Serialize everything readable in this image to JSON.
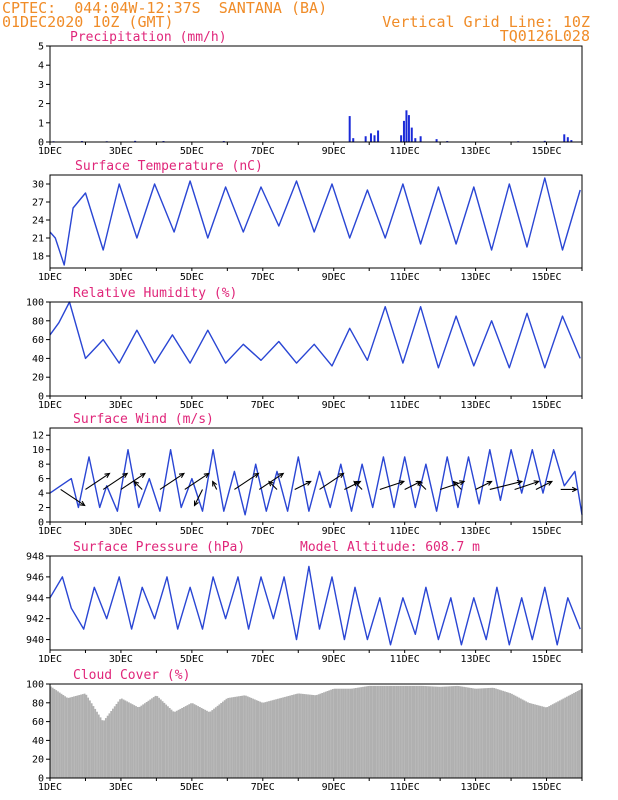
{
  "header": {
    "line1": "CPTEC:  044:04W-12:37S  SANTANA (BA)",
    "line2": "01DEC2020 10Z (GMT)",
    "grid_note": "Vertical Grid Line: 10Z",
    "run_code": "TQ0126L028"
  },
  "colors": {
    "header_text": "#f08c28",
    "panel_title": "#e0267a",
    "series_line": "#2a46d4",
    "precip_bar": "#1a2ad8",
    "cloud_fill": "#b0b0b0"
  },
  "chart_data": [
    {
      "type": "bar",
      "title": "Precipitation (mm/h)",
      "xlabel": "",
      "ylabel": "",
      "ylim": [
        0,
        5
      ],
      "yticks": [
        0,
        1,
        2,
        3,
        4,
        5
      ],
      "xticks": [
        "1DEC",
        "3DEC",
        "5DEC",
        "7DEC",
        "9DEC",
        "11DEC",
        "13DEC",
        "15DEC"
      ],
      "series": [
        {
          "x": [
            1.1,
            1.9,
            2.6,
            3.4,
            4.2,
            5.9,
            9.45,
            9.55,
            9.9,
            10.05,
            10.15,
            10.25,
            10.9,
            10.98,
            11.05,
            11.12,
            11.2,
            11.3,
            11.45,
            11.9,
            12.2,
            14.2,
            14.95,
            15.5,
            15.6,
            15.7
          ],
          "values": [
            0.04,
            0.05,
            0.04,
            0.06,
            0.05,
            0.05,
            1.35,
            0.2,
            0.3,
            0.45,
            0.35,
            0.6,
            0.35,
            1.1,
            1.65,
            1.4,
            0.75,
            0.2,
            0.3,
            0.15,
            0.05,
            0.04,
            0.06,
            0.4,
            0.25,
            0.1
          ]
        }
      ]
    },
    {
      "type": "line",
      "title": "Surface Temperature (nC)",
      "xlabel": "",
      "ylabel": "",
      "ylim": [
        16,
        31.5
      ],
      "yticks": [
        18,
        21,
        24,
        27,
        30
      ],
      "xticks": [
        "1DEC",
        "3DEC",
        "5DEC",
        "7DEC",
        "9DEC",
        "11DEC",
        "13DEC",
        "15DEC"
      ],
      "series": [
        {
          "x": [
            1.0,
            1.15,
            1.4,
            1.65,
            2.0,
            2.5,
            2.95,
            3.45,
            3.95,
            4.5,
            4.95,
            5.45,
            5.95,
            6.45,
            6.95,
            7.45,
            7.95,
            8.45,
            8.95,
            9.45,
            9.95,
            10.45,
            10.95,
            11.45,
            11.95,
            12.45,
            12.95,
            13.45,
            13.95,
            14.45,
            14.95,
            15.45,
            15.95
          ],
          "values": [
            22,
            21,
            16.5,
            26,
            28.5,
            19,
            30,
            21,
            30,
            22,
            30.5,
            21,
            29.5,
            22,
            29.5,
            23,
            30.5,
            22,
            30,
            21,
            29,
            21,
            30,
            20,
            29.5,
            20,
            29.5,
            19,
            30,
            19.5,
            31,
            19,
            29
          ]
        }
      ]
    },
    {
      "type": "line",
      "title": "Relative Humidity (%)",
      "xlabel": "",
      "ylabel": "",
      "ylim": [
        0,
        100
      ],
      "yticks": [
        0,
        20,
        40,
        60,
        80,
        100
      ],
      "xticks": [
        "1DEC",
        "3DEC",
        "5DEC",
        "7DEC",
        "9DEC",
        "11DEC",
        "13DEC",
        "15DEC"
      ],
      "series": [
        {
          "x": [
            1.0,
            1.25,
            1.55,
            2.0,
            2.5,
            2.95,
            3.45,
            3.95,
            4.45,
            4.95,
            5.45,
            5.95,
            6.45,
            6.95,
            7.45,
            7.95,
            8.45,
            8.95,
            9.45,
            9.95,
            10.45,
            10.95,
            11.45,
            11.95,
            12.45,
            12.95,
            13.45,
            13.95,
            14.45,
            14.95,
            15.45,
            15.95
          ],
          "values": [
            65,
            78,
            100,
            40,
            60,
            35,
            70,
            35,
            65,
            35,
            70,
            35,
            55,
            38,
            58,
            35,
            55,
            32,
            72,
            38,
            95,
            35,
            95,
            30,
            85,
            32,
            80,
            30,
            88,
            30,
            85,
            40
          ]
        }
      ]
    },
    {
      "type": "line",
      "title": "Surface Wind (m/s)",
      "xlabel": "",
      "ylabel": "",
      "ylim": [
        0,
        13
      ],
      "yticks": [
        0,
        2,
        4,
        6,
        8,
        10,
        12
      ],
      "xticks": [
        "1DEC",
        "3DEC",
        "5DEC",
        "7DEC",
        "9DEC",
        "11DEC",
        "13DEC",
        "15DEC"
      ],
      "series": [
        {
          "x": [
            1.0,
            1.3,
            1.6,
            1.8,
            2.1,
            2.4,
            2.6,
            2.9,
            3.2,
            3.5,
            3.8,
            4.1,
            4.4,
            4.7,
            5.0,
            5.3,
            5.6,
            5.9,
            6.2,
            6.5,
            6.8,
            7.1,
            7.4,
            7.7,
            8.0,
            8.3,
            8.6,
            8.9,
            9.2,
            9.5,
            9.8,
            10.1,
            10.4,
            10.7,
            11.0,
            11.3,
            11.6,
            11.9,
            12.2,
            12.5,
            12.8,
            13.1,
            13.4,
            13.7,
            14.0,
            14.3,
            14.6,
            14.9,
            15.2,
            15.5,
            15.8,
            16.0
          ],
          "values": [
            4,
            5,
            6,
            2,
            9,
            2,
            5,
            1.5,
            10,
            2,
            6,
            1.5,
            10,
            2,
            6,
            1.5,
            10,
            1.5,
            7,
            1,
            8,
            1.5,
            7,
            1.5,
            9,
            1.5,
            7,
            2,
            8,
            1.5,
            8,
            2,
            9,
            2,
            9,
            2,
            8,
            1.5,
            9,
            2,
            9,
            2.5,
            10,
            3,
            10,
            4,
            10,
            4,
            10,
            5,
            7,
            1
          ]
        }
      ],
      "arrows": [
        {
          "x": 1.3,
          "u": 3,
          "v": -2
        },
        {
          "x": 2.0,
          "u": 3,
          "v": 2
        },
        {
          "x": 2.5,
          "u": 3,
          "v": 2
        },
        {
          "x": 3.0,
          "u": 3,
          "v": 2
        },
        {
          "x": 3.6,
          "u": -1,
          "v": 1
        },
        {
          "x": 4.1,
          "u": 3,
          "v": 2
        },
        {
          "x": 4.8,
          "u": 3,
          "v": 2
        },
        {
          "x": 5.3,
          "u": -1,
          "v": -2
        },
        {
          "x": 5.7,
          "u": -0.5,
          "v": 1
        },
        {
          "x": 6.2,
          "u": 3,
          "v": 2
        },
        {
          "x": 6.9,
          "u": 3,
          "v": 2
        },
        {
          "x": 7.4,
          "u": -1,
          "v": 1
        },
        {
          "x": 7.9,
          "u": 2,
          "v": 1
        },
        {
          "x": 8.6,
          "u": 3,
          "v": 2
        },
        {
          "x": 9.3,
          "u": 2,
          "v": 1
        },
        {
          "x": 9.8,
          "u": -1,
          "v": 1
        },
        {
          "x": 10.3,
          "u": 3,
          "v": 1
        },
        {
          "x": 11.0,
          "u": 2,
          "v": 1
        },
        {
          "x": 11.6,
          "u": -1,
          "v": 1
        },
        {
          "x": 12.0,
          "u": 3,
          "v": 1
        },
        {
          "x": 12.6,
          "u": -1,
          "v": 1
        },
        {
          "x": 13.0,
          "u": 2,
          "v": 1
        },
        {
          "x": 13.4,
          "u": 4,
          "v": 1
        },
        {
          "x": 14.1,
          "u": 3,
          "v": 1
        },
        {
          "x": 14.7,
          "u": 2,
          "v": 1
        },
        {
          "x": 15.4,
          "u": 2,
          "v": 0
        }
      ]
    },
    {
      "type": "line",
      "title": "Surface Pressure (hPa)",
      "annotation": "Model Altitude: 608.7  m",
      "xlabel": "",
      "ylabel": "",
      "ylim": [
        939,
        948
      ],
      "yticks": [
        940,
        942,
        944,
        946,
        948
      ],
      "xticks": [
        "1DEC",
        "3DEC",
        "5DEC",
        "7DEC",
        "9DEC",
        "11DEC",
        "13DEC",
        "15DEC"
      ],
      "series": [
        {
          "x": [
            1.0,
            1.35,
            1.6,
            1.95,
            2.25,
            2.6,
            2.95,
            3.3,
            3.6,
            3.95,
            4.3,
            4.6,
            4.95,
            5.3,
            5.6,
            5.95,
            6.3,
            6.6,
            6.95,
            7.3,
            7.6,
            7.95,
            8.3,
            8.6,
            8.95,
            9.3,
            9.6,
            9.95,
            10.3,
            10.6,
            10.95,
            11.3,
            11.6,
            11.95,
            12.3,
            12.6,
            12.95,
            13.3,
            13.6,
            13.95,
            14.3,
            14.6,
            14.95,
            15.3,
            15.6,
            15.95
          ],
          "values": [
            944,
            946,
            943,
            941,
            945,
            942,
            946,
            941,
            945,
            942,
            946,
            941,
            945,
            941,
            946,
            942,
            946,
            941,
            946,
            942,
            946,
            940,
            947,
            941,
            946,
            940,
            945,
            940,
            944,
            939.5,
            944,
            940.5,
            945,
            940,
            944,
            939.5,
            944,
            940,
            945,
            939.5,
            944,
            940,
            945,
            939.5,
            944,
            941
          ]
        }
      ]
    },
    {
      "type": "area",
      "title": "Cloud Cover (%)",
      "xlabel": "",
      "ylabel": "",
      "ylim": [
        0,
        100
      ],
      "yticks": [
        0,
        20,
        40,
        60,
        80,
        100
      ],
      "xticks": [
        "1DEC",
        "3DEC",
        "5DEC",
        "7DEC",
        "9DEC",
        "11DEC",
        "13DEC",
        "15DEC"
      ],
      "series": [
        {
          "x": [
            1.0,
            1.5,
            2.0,
            2.5,
            3.0,
            3.5,
            4.0,
            4.5,
            5.0,
            5.5,
            6.0,
            6.5,
            7.0,
            7.5,
            8.0,
            8.5,
            9.0,
            9.5,
            10.0,
            10.5,
            11.0,
            11.5,
            12.0,
            12.5,
            13.0,
            13.5,
            14.0,
            14.5,
            15.0,
            15.5,
            16.0
          ],
          "values": [
            98,
            85,
            90,
            60,
            85,
            75,
            88,
            70,
            80,
            70,
            85,
            88,
            80,
            85,
            90,
            88,
            95,
            95,
            98,
            98,
            98,
            98,
            97,
            98,
            95,
            96,
            90,
            80,
            75,
            85,
            95
          ]
        }
      ]
    }
  ]
}
